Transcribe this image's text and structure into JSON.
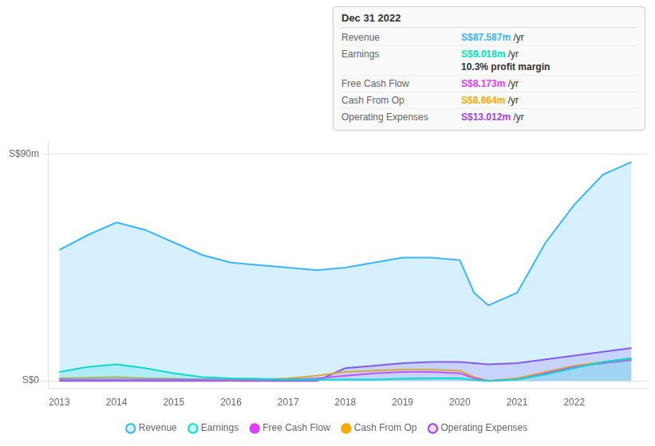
{
  "chart_data": {
    "type": "line",
    "x": [
      2013,
      2013.5,
      2014,
      2014.5,
      2015,
      2015.5,
      2016,
      2016.5,
      2017,
      2017.5,
      2018,
      2018.5,
      2019,
      2019.5,
      2020,
      2020.25,
      2020.5,
      2021,
      2021.5,
      2022,
      2022.5,
      2023
    ],
    "series": [
      {
        "name": "Revenue",
        "color": "#38b6ff",
        "type": "area",
        "values": [
          52,
          58,
          63,
          60,
          55,
          50,
          47,
          46,
          45,
          44,
          45,
          47,
          49,
          49,
          48,
          35,
          30,
          35,
          55,
          70,
          82,
          87
        ]
      },
      {
        "name": "Earnings",
        "color": "#00e5c0",
        "type": "area",
        "values": [
          3.5,
          5.5,
          6.5,
          5.0,
          3.0,
          1.5,
          1.0,
          0.8,
          0.5,
          0.5,
          0.5,
          0.5,
          0.8,
          1.0,
          1.0,
          0.3,
          0.0,
          0.5,
          2.5,
          5.0,
          7.5,
          9.0
        ]
      },
      {
        "name": "Free Cash Flow",
        "color": "#e040fb",
        "type": "line",
        "values": [
          0.5,
          0.5,
          0.5,
          0.5,
          0.5,
          0.5,
          0.5,
          0.5,
          0.5,
          1.0,
          2.0,
          3.0,
          3.5,
          3.5,
          3.0,
          1.0,
          0.0,
          0.5,
          3.0,
          5.5,
          7.0,
          8.2
        ]
      },
      {
        "name": "Cash From Op",
        "color": "#ffaa00",
        "type": "line",
        "values": [
          1.0,
          1.2,
          1.5,
          1.0,
          0.8,
          0.5,
          0.3,
          0.5,
          1.0,
          2.0,
          3.5,
          4.0,
          4.5,
          4.5,
          4.0,
          1.5,
          0.0,
          1.0,
          3.5,
          6.0,
          7.5,
          8.7
        ]
      },
      {
        "name": "Operating Expenses",
        "color": "#9944ee",
        "type": "area",
        "values": [
          0.0,
          0.0,
          0.0,
          0.0,
          0.0,
          0.0,
          0.0,
          0.0,
          0.0,
          0.0,
          5.0,
          6.0,
          7.0,
          7.5,
          7.5,
          7.0,
          6.5,
          7.0,
          8.5,
          10.0,
          11.5,
          13.0
        ]
      }
    ],
    "xlim": [
      2012.8,
      2023.3
    ],
    "xticks": [
      2013,
      2014,
      2015,
      2016,
      2017,
      2018,
      2019,
      2020,
      2021,
      2022
    ],
    "ylim": [
      -3,
      95
    ],
    "yticks": [
      {
        "value": 0,
        "label": "S$0"
      },
      {
        "value": 90,
        "label": "S$90m"
      }
    ],
    "grid": true,
    "legend": "bottom",
    "annotations": {
      "title": "Dec 31 2022",
      "rows": [
        {
          "label": "Revenue",
          "value": "S$87.587m",
          "suffix": "/yr",
          "color": "#38b6ff"
        },
        {
          "label": "Earnings",
          "value": "S$9.018m",
          "suffix": "/yr",
          "color": "#00e5c0",
          "extra": "10.3% profit margin"
        },
        {
          "label": "Free Cash Flow",
          "value": "S$8.173m",
          "suffix": "/yr",
          "color": "#e040fb"
        },
        {
          "label": "Cash From Op",
          "value": "S$8.664m",
          "suffix": "/yr",
          "color": "#ffaa00"
        },
        {
          "label": "Operating Expenses",
          "value": "S$13.012m",
          "suffix": "/yr",
          "color": "#9944ee"
        }
      ]
    }
  }
}
